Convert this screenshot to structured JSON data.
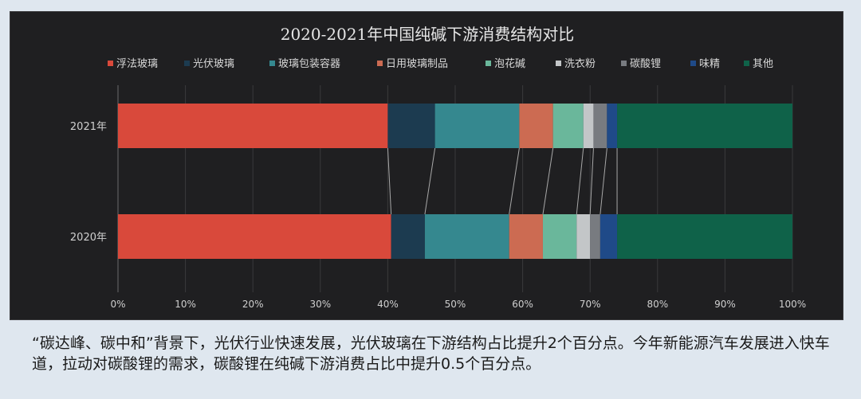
{
  "chart_data": {
    "type": "bar",
    "stacked": true,
    "orientation": "horizontal",
    "percent": true,
    "title": "2020-2021年中国纯碱下游消费结构对比",
    "categories": [
      "2021年",
      "2020年"
    ],
    "xlim": [
      0,
      100
    ],
    "xticks": [
      "0%",
      "10%",
      "20%",
      "30%",
      "40%",
      "50%",
      "60%",
      "70%",
      "80%",
      "90%",
      "100%"
    ],
    "legend_position": "top",
    "series": [
      {
        "name": "浮法玻璃",
        "color": "#d9493b",
        "values": [
          40.0,
          40.5
        ]
      },
      {
        "name": "光伏玻璃",
        "color": "#1c3b50",
        "values": [
          7.0,
          5.0
        ]
      },
      {
        "name": "玻璃包装容器",
        "color": "#35888f",
        "values": [
          12.5,
          12.5
        ]
      },
      {
        "name": "日用玻璃制品",
        "color": "#cc6b52",
        "values": [
          5.0,
          5.0
        ]
      },
      {
        "name": "泡花碱",
        "color": "#6ab79b",
        "values": [
          4.5,
          5.0
        ]
      },
      {
        "name": "洗衣粉",
        "color": "#c3c6c8",
        "values": [
          1.5,
          2.0
        ]
      },
      {
        "name": "碳酸锂",
        "color": "#787b80",
        "values": [
          2.0,
          1.5
        ]
      },
      {
        "name": "味精",
        "color": "#1f4a88",
        "values": [
          1.5,
          2.5
        ]
      },
      {
        "name": "其他",
        "color": "#0f6249",
        "values": [
          26.0,
          26.0
        ]
      }
    ]
  },
  "caption": "“碳达峰、碳中和”背景下，光伏行业快速发展，光伏玻璃在下游结构占比提升2个百分点。今年新能源汽车发展进入快车道，拉动对碳酸锂的需求，碳酸锂在纯碱下游消费占比中提升0.5个百分点。"
}
